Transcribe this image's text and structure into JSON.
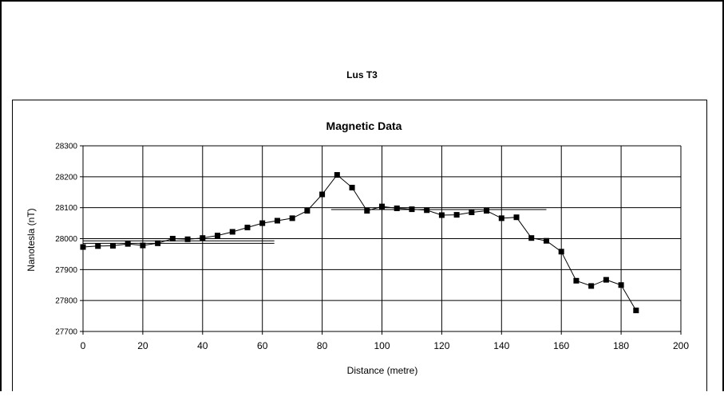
{
  "page": {
    "title": "Lus T3"
  },
  "chart_data": {
    "type": "line",
    "title": "Magnetic Data",
    "xlabel": "Distance (metre)",
    "ylabel": "Nanotesla (nT)",
    "xlim": [
      0,
      200
    ],
    "ylim": [
      27700,
      28300
    ],
    "xticks": [
      0,
      20,
      40,
      60,
      80,
      100,
      120,
      140,
      160,
      180,
      200
    ],
    "yticks": [
      27700,
      27800,
      27900,
      28000,
      28100,
      28200,
      28300
    ],
    "grid": true,
    "legend": "none",
    "series": [
      {
        "x": [
          0,
          5,
          10,
          15,
          20,
          25,
          30,
          35,
          40,
          45,
          50,
          55,
          60,
          65,
          70,
          75,
          80,
          85,
          90,
          95,
          100,
          105,
          110,
          115,
          120,
          125,
          130,
          135,
          140,
          145,
          150,
          155,
          160,
          165,
          170,
          175,
          180,
          185
        ],
        "y": [
          27973,
          27976,
          27977,
          27983,
          27978,
          27985,
          28000,
          27998,
          28002,
          28010,
          28022,
          28036,
          28050,
          28058,
          28066,
          28090,
          28143,
          28206,
          28165,
          28090,
          28104,
          28098,
          28095,
          28092,
          28076,
          28077,
          28085,
          28090,
          28066,
          28069,
          28002,
          27993,
          27958,
          27864,
          27847,
          27867,
          27850,
          27768
        ]
      }
    ],
    "reference_lines": [
      {
        "x": [
          0,
          64
        ],
        "y": [
          27985,
          27985
        ]
      },
      {
        "x": [
          0,
          64
        ],
        "y": [
          27993,
          27993
        ]
      },
      {
        "x": [
          83,
          155
        ],
        "y": [
          28094,
          28094
        ]
      }
    ]
  }
}
